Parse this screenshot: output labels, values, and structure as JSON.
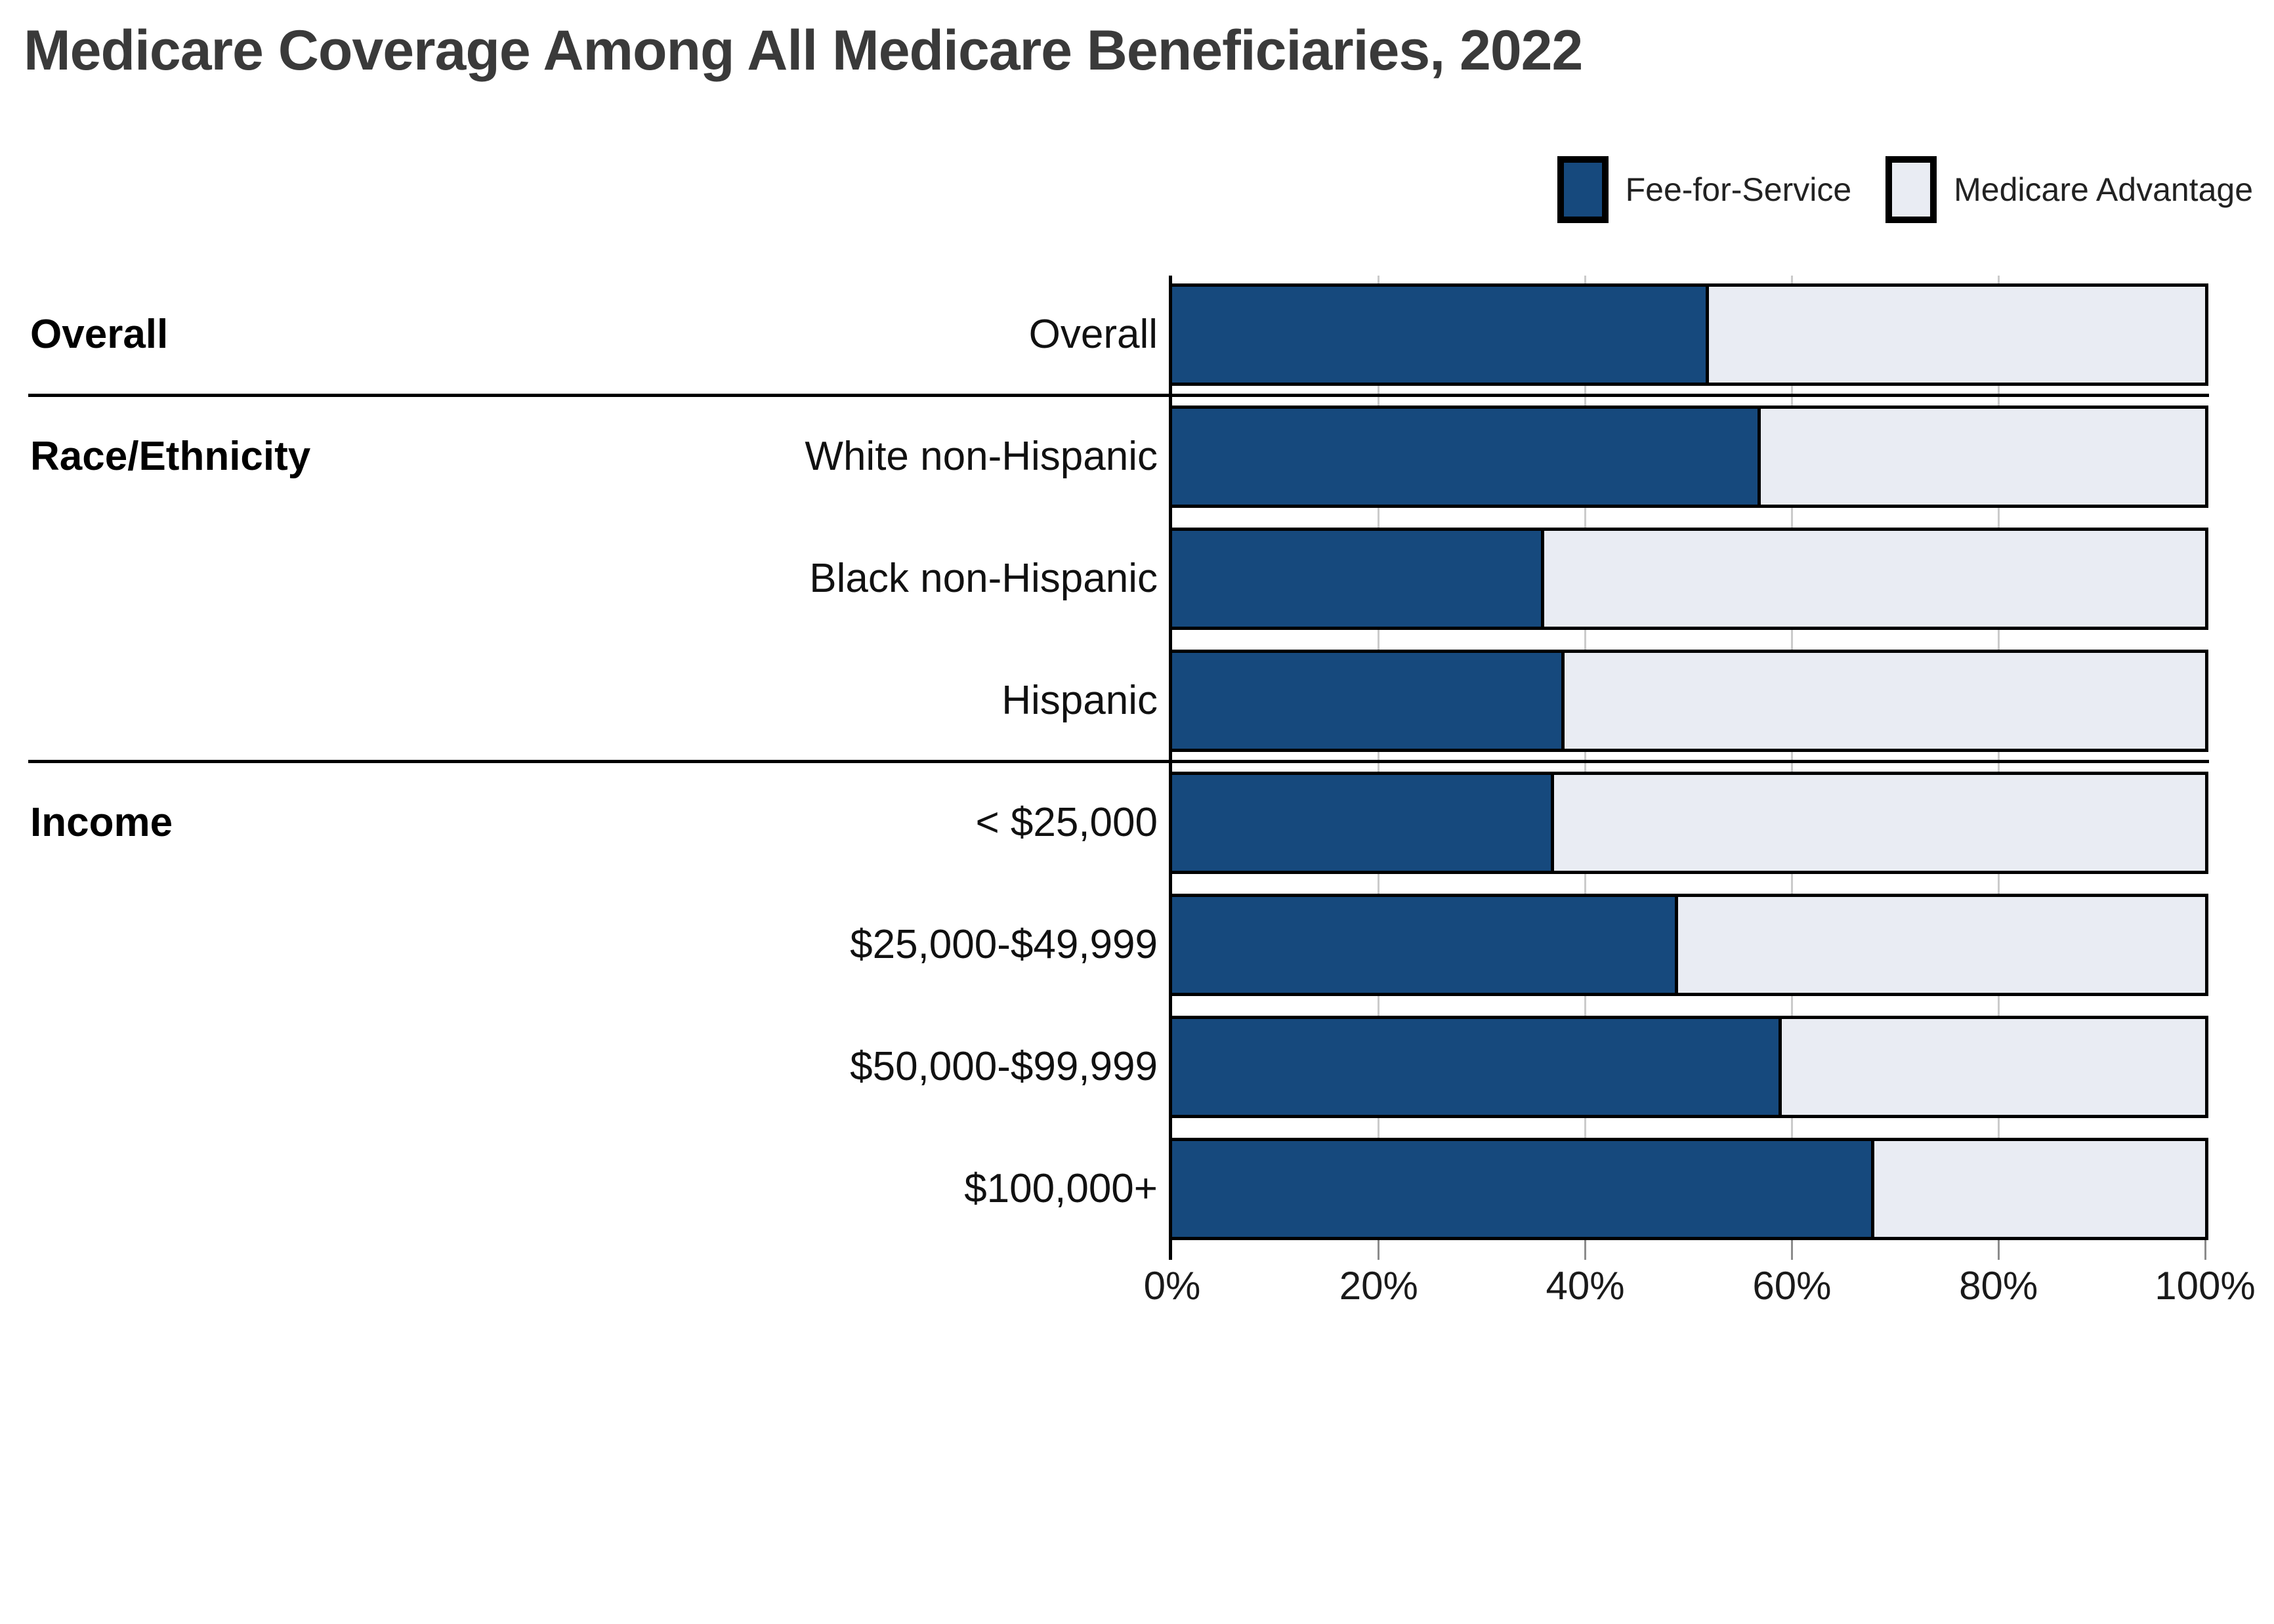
{
  "title": "Medicare Coverage Among All Medicare Beneficiaries, 2022",
  "legend": {
    "items": [
      {
        "label": "Fee-for-Service",
        "color": "#16497d"
      },
      {
        "label": "Medicare Advantage",
        "color": "#e9ecf3"
      }
    ]
  },
  "colors": {
    "fee_for_service": "#16497d",
    "medicare_advantage": "#e9ecf3",
    "bar_border": "#000000",
    "gridline": "#cbcbcb",
    "separator": "#000000",
    "title_text": "#3a3a3a",
    "label_text": "#111111"
  },
  "groups": [
    {
      "heading": "Overall",
      "first_row_index": 0
    },
    {
      "heading": "Race/Ethnicity",
      "first_row_index": 1
    },
    {
      "heading": "Income",
      "first_row_index": 4
    }
  ],
  "chart_data": {
    "type": "bar",
    "orientation": "horizontal",
    "stacked": true,
    "title": "Medicare Coverage Among All Medicare Beneficiaries, 2022",
    "categories": [
      "Overall",
      "White non-Hispanic",
      "Black non-Hispanic",
      "Hispanic",
      "< $25,000",
      "$25,000-$49,999",
      "$50,000-$99,999",
      "$100,000+"
    ],
    "category_groups": [
      "Overall",
      "Race/Ethnicity",
      "Race/Ethnicity",
      "Race/Ethnicity",
      "Income",
      "Income",
      "Income",
      "Income"
    ],
    "series": [
      {
        "name": "Fee-for-Service",
        "color": "#16497d",
        "values": [
          52,
          57,
          36,
          38,
          37,
          49,
          59,
          68
        ]
      },
      {
        "name": "Medicare Advantage",
        "color": "#e9ecf3",
        "values": [
          48,
          43,
          64,
          62,
          63,
          51,
          41,
          32
        ]
      }
    ],
    "xlabel": "",
    "ylabel": "",
    "xlim": [
      0,
      100
    ],
    "x_tick_labels": [
      "0%",
      "20%",
      "40%",
      "60%",
      "80%",
      "100%"
    ],
    "grid": "vertical",
    "legend_position": "top-right"
  }
}
